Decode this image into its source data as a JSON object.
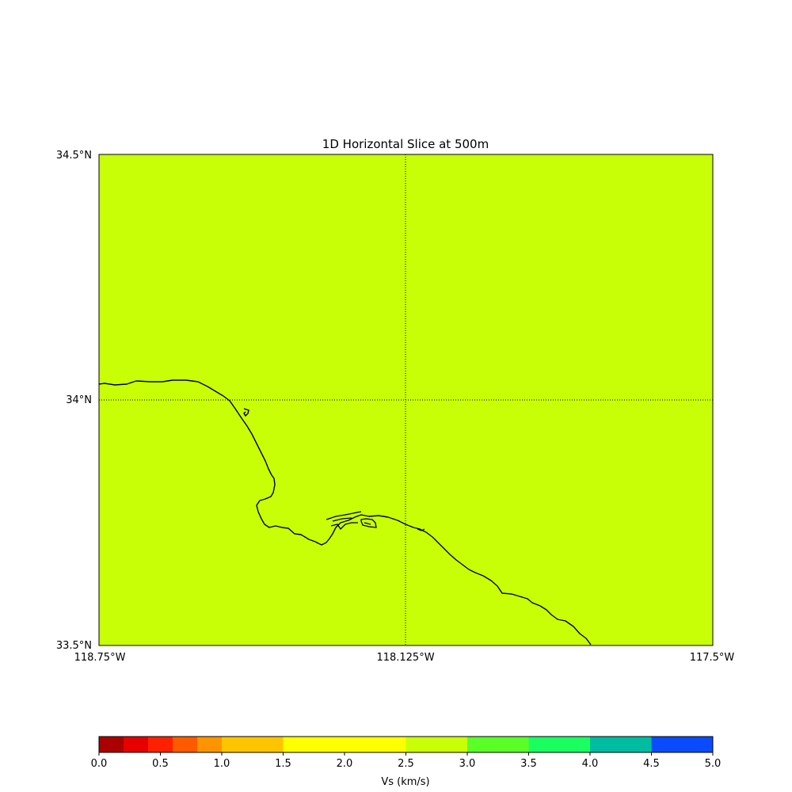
{
  "map": {
    "title": "1D Horizontal Slice at 500m",
    "fill_color": "#c8ff06",
    "lat_labels": [
      "34.5°N",
      "34°N",
      "33.5°N"
    ],
    "lon_labels": [
      "118.75°W",
      "118.125°W",
      "117.5°W"
    ],
    "gridlines": "dotted",
    "coastline_color": "#000000"
  },
  "colorbar": {
    "label": "Vs (km/s)",
    "tick_labels": [
      "0.0",
      "0.5",
      "1.0",
      "1.5",
      "2.0",
      "2.5",
      "3.0",
      "3.5",
      "4.0",
      "4.5",
      "5.0"
    ],
    "bins": [
      {
        "from": 0.0,
        "to": 0.2,
        "color": "#aa0000"
      },
      {
        "from": 0.2,
        "to": 0.4,
        "color": "#e60000"
      },
      {
        "from": 0.4,
        "to": 0.6,
        "color": "#ff2000"
      },
      {
        "from": 0.6,
        "to": 0.8,
        "color": "#ff5a00"
      },
      {
        "from": 0.8,
        "to": 1.0,
        "color": "#ff9400"
      },
      {
        "from": 1.0,
        "to": 1.5,
        "color": "#ffc400"
      },
      {
        "from": 1.5,
        "to": 2.5,
        "color": "#ffff00"
      },
      {
        "from": 2.5,
        "to": 3.0,
        "color": "#c8ff06"
      },
      {
        "from": 3.0,
        "to": 3.5,
        "color": "#5aff28"
      },
      {
        "from": 3.5,
        "to": 4.0,
        "color": "#1aff60"
      },
      {
        "from": 4.0,
        "to": 4.5,
        "color": "#00bca0"
      },
      {
        "from": 4.5,
        "to": 5.0,
        "color": "#0a4bff"
      }
    ],
    "range": [
      0.0,
      5.0
    ]
  }
}
